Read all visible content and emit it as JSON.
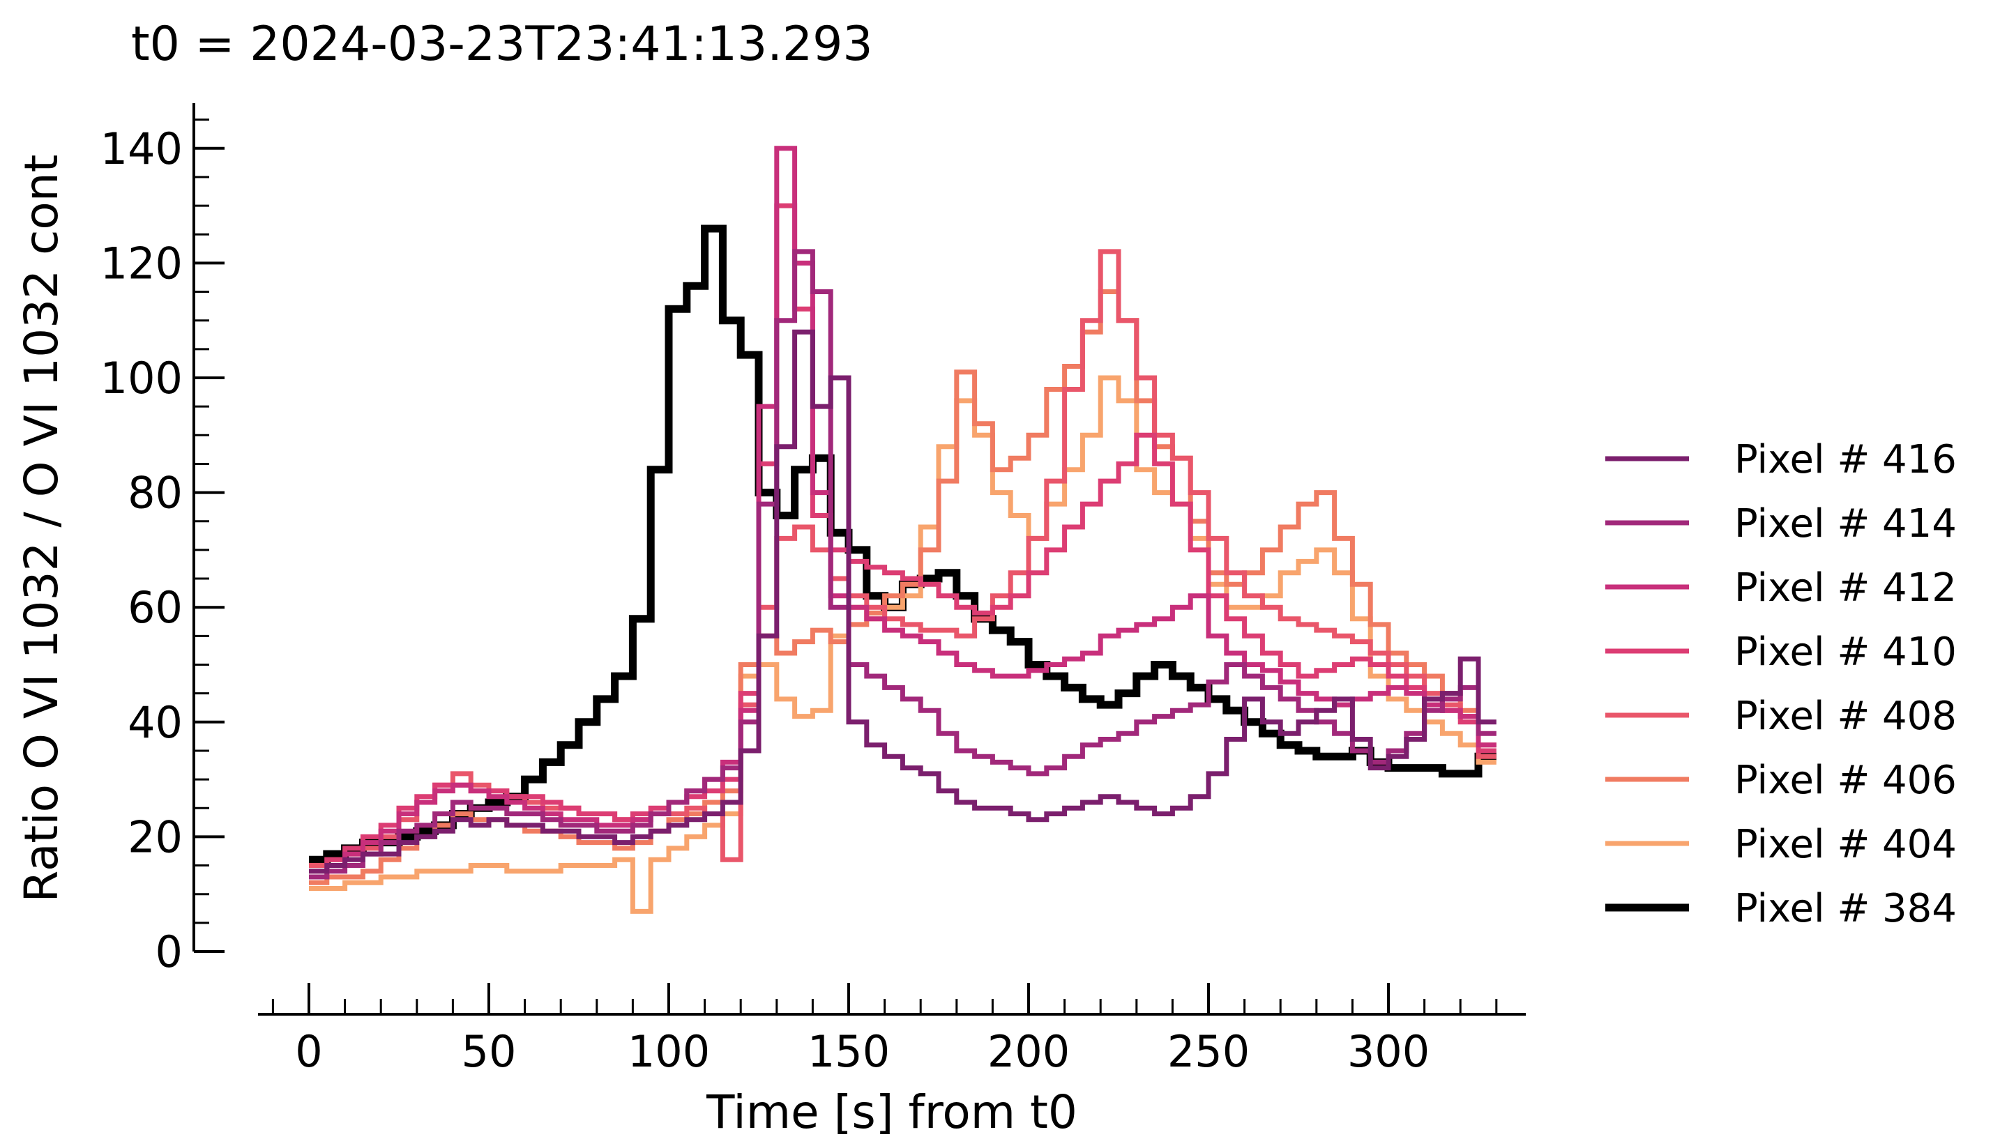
{
  "chart_data": {
    "type": "line",
    "step": true,
    "title": "t0 = 2024-03-23T23:41:13.293",
    "xlabel": "Time [s] from t0",
    "ylabel": "Ratio O VI 1032 / O VI 1032 cont",
    "xlim": [
      -14,
      340
    ],
    "ylim": [
      0,
      148
    ],
    "xticks": [
      0,
      50,
      100,
      150,
      200,
      250,
      300
    ],
    "yticks": [
      0,
      20,
      40,
      60,
      80,
      100,
      120,
      140
    ],
    "grid": false,
    "legend_position": "right",
    "x": [
      0,
      5,
      10,
      15,
      20,
      25,
      30,
      35,
      40,
      45,
      50,
      55,
      60,
      65,
      70,
      75,
      80,
      85,
      90,
      95,
      100,
      105,
      110,
      115,
      120,
      125,
      130,
      135,
      140,
      145,
      150,
      155,
      160,
      165,
      170,
      175,
      180,
      185,
      190,
      195,
      200,
      205,
      210,
      215,
      220,
      225,
      230,
      235,
      240,
      245,
      250,
      255,
      260,
      265,
      270,
      275,
      280,
      285,
      290,
      295,
      300,
      305,
      310,
      315,
      320,
      325
    ],
    "series": [
      {
        "name": "Pixel # 416",
        "color": "#7b1f6d",
        "width": 7,
        "values": [
          14,
          15,
          16,
          17,
          17,
          19,
          20,
          21,
          23,
          22,
          23,
          22,
          22,
          21,
          21,
          20,
          20,
          19,
          20,
          21,
          22,
          23,
          24,
          26,
          35,
          55,
          88,
          108,
          95,
          100,
          40,
          36,
          34,
          32,
          31,
          28,
          26,
          25,
          25,
          24,
          23,
          24,
          25,
          26,
          27,
          26,
          25,
          24,
          25,
          27,
          31,
          37,
          44,
          40,
          38,
          40,
          42,
          44,
          37,
          32,
          34,
          37,
          44,
          45,
          51,
          40
        ]
      },
      {
        "name": "Pixel # 414",
        "color": "#a1287a",
        "width": 7,
        "values": [
          13,
          14,
          15,
          17,
          19,
          21,
          22,
          24,
          26,
          25,
          25,
          24,
          24,
          23,
          22,
          22,
          21,
          21,
          22,
          24,
          26,
          28,
          30,
          32,
          40,
          78,
          110,
          122,
          115,
          60,
          50,
          48,
          46,
          44,
          42,
          38,
          35,
          34,
          33,
          32,
          31,
          32,
          34,
          36,
          37,
          38,
          40,
          41,
          42,
          43,
          47,
          50,
          48,
          46,
          44,
          42,
          40,
          38,
          35,
          33,
          35,
          38,
          42,
          44,
          46,
          38
        ]
      },
      {
        "name": "Pixel # 412",
        "color": "#c82f7b",
        "width": 7,
        "values": [
          13,
          15,
          17,
          19,
          21,
          24,
          26,
          28,
          29,
          28,
          27,
          26,
          25,
          24,
          23,
          23,
          22,
          22,
          23,
          24,
          26,
          28,
          30,
          33,
          42,
          95,
          140,
          120,
          80,
          62,
          60,
          58,
          56,
          55,
          54,
          52,
          50,
          49,
          48,
          48,
          49,
          50,
          51,
          52,
          55,
          56,
          57,
          58,
          60,
          62,
          55,
          52,
          50,
          49,
          47,
          45,
          44,
          43,
          44,
          45,
          46,
          45,
          43,
          42,
          41,
          36
        ]
      },
      {
        "name": "Pixel # 410",
        "color": "#dc3d73",
        "width": 7,
        "values": [
          14,
          16,
          18,
          20,
          22,
          25,
          27,
          29,
          29,
          28,
          28,
          27,
          27,
          26,
          25,
          24,
          24,
          23,
          24,
          25,
          26,
          27,
          28,
          30,
          45,
          85,
          130,
          112,
          76,
          70,
          68,
          67,
          66,
          65,
          64,
          62,
          60,
          59,
          60,
          62,
          66,
          70,
          74,
          78,
          82,
          85,
          90,
          85,
          78,
          70,
          62,
          58,
          55,
          52,
          50,
          48,
          49,
          50,
          51,
          50,
          48,
          46,
          44,
          42,
          40,
          35
        ]
      },
      {
        "name": "Pixel # 408",
        "color": "#e9566a",
        "width": 7,
        "values": [
          15,
          16,
          17,
          18,
          20,
          23,
          26,
          29,
          31,
          29,
          28,
          27,
          26,
          25,
          25,
          24,
          24,
          23,
          23,
          24,
          24,
          25,
          24,
          16,
          43,
          60,
          72,
          74,
          70,
          65,
          62,
          60,
          58,
          57,
          56,
          56,
          55,
          58,
          62,
          66,
          72,
          82,
          98,
          110,
          122,
          110,
          100,
          90,
          86,
          80,
          72,
          66,
          62,
          60,
          58,
          57,
          56,
          55,
          54,
          52,
          50,
          48,
          45,
          43,
          41,
          34
        ]
      },
      {
        "name": "Pixel # 406",
        "color": "#f07b61",
        "width": 7,
        "values": [
          12,
          13,
          13,
          14,
          16,
          18,
          20,
          22,
          24,
          23,
          23,
          22,
          21,
          21,
          20,
          19,
          19,
          18,
          19,
          21,
          23,
          24,
          26,
          28,
          50,
          55,
          52,
          54,
          56,
          54,
          57,
          59,
          62,
          64,
          70,
          82,
          101,
          92,
          84,
          86,
          90,
          98,
          102,
          108,
          115,
          110,
          96,
          88,
          86,
          75,
          66,
          64,
          66,
          70,
          74,
          78,
          80,
          72,
          64,
          57,
          52,
          50,
          48,
          45,
          42,
          36
        ]
      },
      {
        "name": "Pixel # 404",
        "color": "#f8a46d",
        "width": 7,
        "values": [
          11,
          11,
          12,
          12,
          13,
          13,
          14,
          14,
          14,
          15,
          15,
          14,
          14,
          14,
          15,
          15,
          15,
          16,
          7,
          16,
          18,
          20,
          22,
          24,
          48,
          50,
          44,
          41,
          42,
          55,
          60,
          58,
          60,
          62,
          74,
          88,
          96,
          90,
          80,
          76,
          72,
          78,
          84,
          90,
          100,
          96,
          84,
          80,
          78,
          72,
          64,
          60,
          60,
          62,
          66,
          68,
          70,
          66,
          58,
          48,
          44,
          42,
          40,
          38,
          36,
          33
        ]
      },
      {
        "name": "Pixel # 384",
        "color": "#000000",
        "width": 11,
        "values": [
          16,
          17,
          18,
          19,
          19,
          20,
          21,
          22,
          24,
          25,
          26,
          27,
          30,
          33,
          36,
          40,
          44,
          48,
          58,
          84,
          112,
          116,
          126,
          110,
          104,
          80,
          76,
          84,
          86,
          73,
          70,
          62,
          60,
          64,
          65,
          66,
          62,
          58,
          56,
          54,
          50,
          48,
          46,
          44,
          43,
          45,
          48,
          50,
          48,
          46,
          44,
          42,
          40,
          38,
          36,
          35,
          34,
          34,
          35,
          33,
          32,
          32,
          32,
          31,
          31,
          34
        ]
      }
    ]
  }
}
